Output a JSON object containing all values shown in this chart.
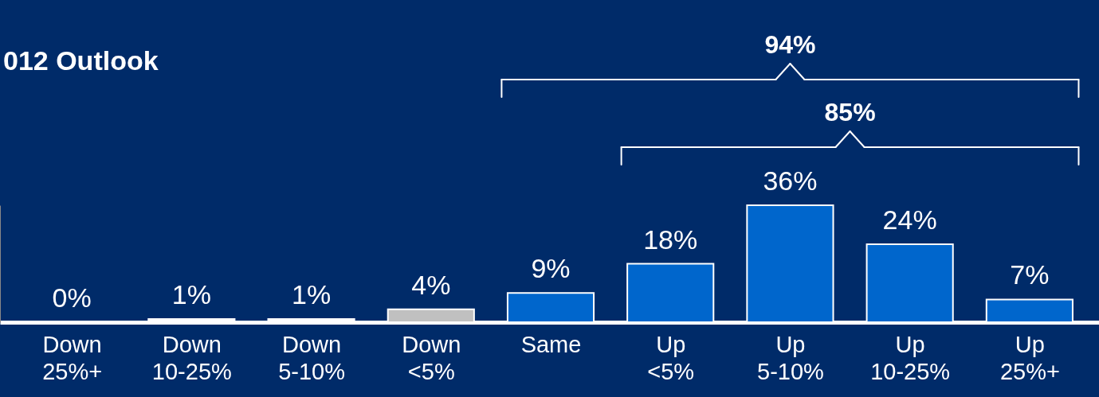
{
  "chart_data": {
    "type": "bar",
    "title": "012 Outlook",
    "categories": [
      "Down 25%+",
      "Down 10-25%",
      "Down 5-10%",
      "Down <5%",
      "Same",
      "Up <5%",
      "Up 5-10%",
      "Up 10-25%",
      "Up 25%+"
    ],
    "values": [
      0,
      1,
      1,
      4,
      9,
      18,
      36,
      24,
      7
    ],
    "value_labels": [
      "0%",
      "1%",
      "1%",
      "4%",
      "9%",
      "18%",
      "36%",
      "24%",
      "7%"
    ],
    "colors": [
      "#ffffff",
      "#ffffff",
      "#ffffff",
      "#c0c0c0",
      "#0066cc",
      "#0066cc",
      "#0066cc",
      "#0066cc",
      "#0066cc"
    ],
    "annotations": [
      "94%",
      "85%"
    ]
  }
}
